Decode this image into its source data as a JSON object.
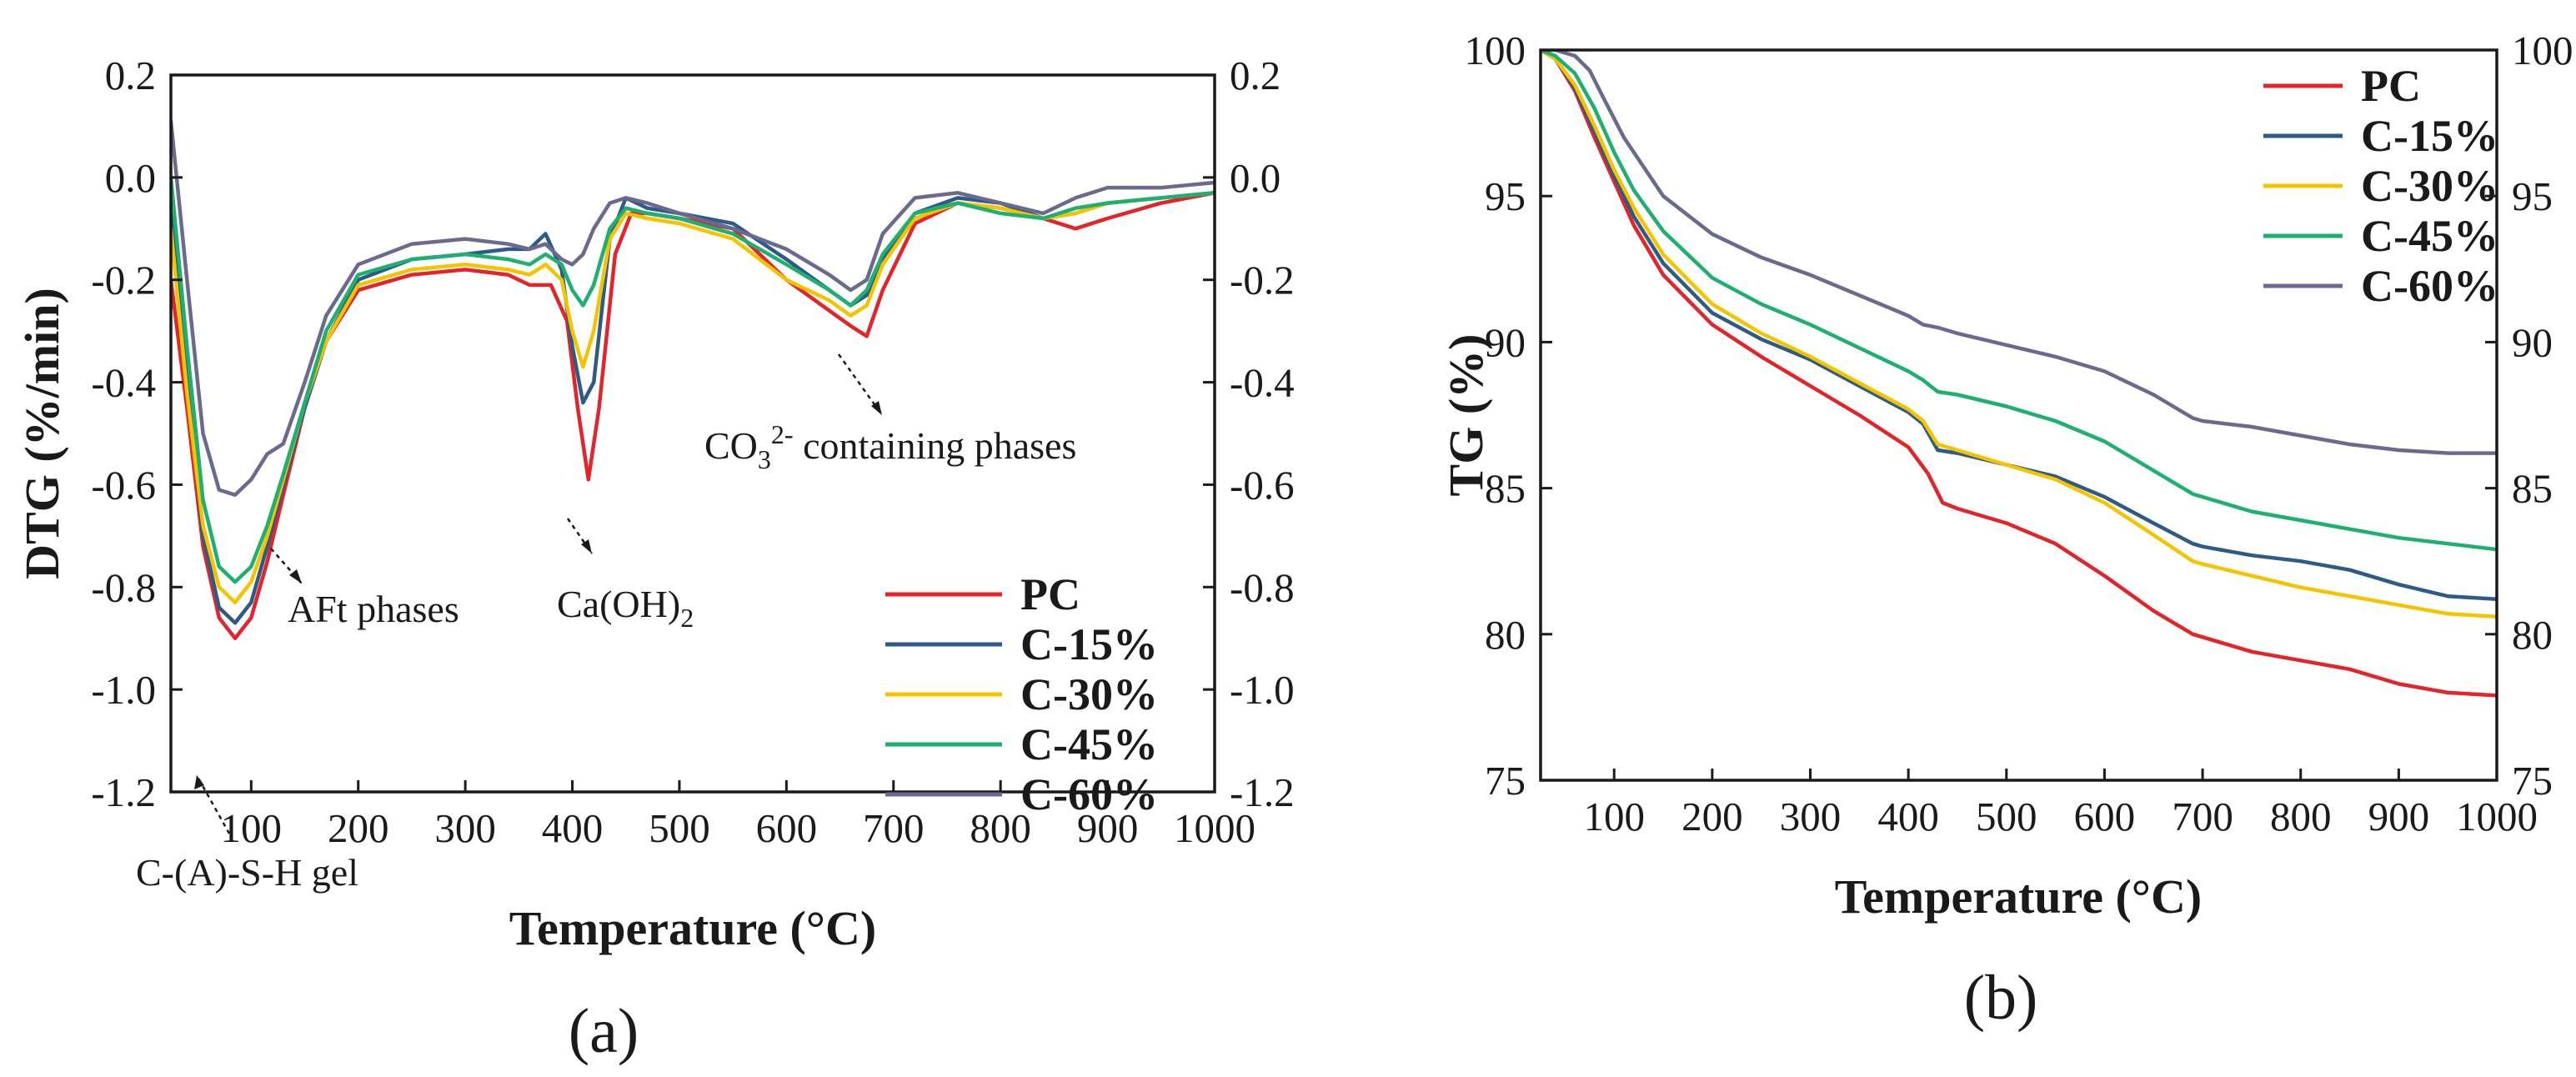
{
  "chart_data": [
    {
      "panel": "(a)",
      "type": "line",
      "ylabel": "DTG (%/min)",
      "xlabel": "Temperature (°C)",
      "xlim": [
        25,
        1000
      ],
      "ylim": [
        -1.2,
        0.2
      ],
      "xticks": [
        100,
        200,
        300,
        400,
        500,
        600,
        700,
        800,
        900,
        1000
      ],
      "yticks": [
        -1.2,
        -1.0,
        -0.8,
        -0.6,
        -0.4,
        -0.2,
        0.0,
        0.2
      ],
      "ytick_labels": [
        "-1.2",
        "-1.0",
        "-0.8",
        "-0.6",
        "-0.4",
        "-0.2",
        "0.0",
        "0.2"
      ],
      "right_ytick_labels": [
        "-1.2",
        "-1.0",
        "-0.8",
        "-0.6",
        "-0.4",
        "-0.2",
        "0.0",
        "0.2"
      ],
      "legend_position": "bottom-right",
      "annotations": [
        {
          "text": "C-(A)-S-H gel",
          "x": 85,
          "y": -0.9
        },
        {
          "text": "AFt phases",
          "x": 135,
          "y": -0.58
        },
        {
          "text": "Ca(OH)2",
          "x": 430,
          "y": -0.58
        },
        {
          "text": "CO3 2- containing phases",
          "x": 670,
          "y": -0.31
        }
      ],
      "series": [
        {
          "name": "PC",
          "color": "#e3242b",
          "x": [
            25,
            40,
            55,
            70,
            85,
            100,
            115,
            130,
            150,
            170,
            200,
            250,
            300,
            340,
            360,
            380,
            395,
            405,
            415,
            425,
            440,
            455,
            470,
            500,
            550,
            600,
            640,
            660,
            675,
            690,
            720,
            760,
            800,
            840,
            870,
            900,
            950,
            1000
          ],
          "y": [
            -0.2,
            -0.45,
            -0.72,
            -0.86,
            -0.9,
            -0.86,
            -0.75,
            -0.62,
            -0.45,
            -0.32,
            -0.22,
            -0.19,
            -0.18,
            -0.19,
            -0.21,
            -0.21,
            -0.28,
            -0.45,
            -0.59,
            -0.45,
            -0.15,
            -0.07,
            -0.07,
            -0.08,
            -0.1,
            -0.2,
            -0.26,
            -0.29,
            -0.31,
            -0.22,
            -0.09,
            -0.05,
            -0.06,
            -0.08,
            -0.1,
            -0.08,
            -0.05,
            -0.03
          ]
        },
        {
          "name": "C-15%",
          "color": "#2d5b86",
          "x": [
            25,
            40,
            55,
            70,
            85,
            100,
            115,
            130,
            150,
            170,
            200,
            250,
            300,
            340,
            360,
            375,
            390,
            400,
            410,
            420,
            435,
            450,
            470,
            500,
            550,
            600,
            640,
            660,
            675,
            690,
            720,
            760,
            800,
            840,
            870,
            900,
            950,
            1000
          ],
          "y": [
            -0.05,
            -0.4,
            -0.7,
            -0.84,
            -0.87,
            -0.83,
            -0.72,
            -0.6,
            -0.45,
            -0.32,
            -0.2,
            -0.16,
            -0.15,
            -0.14,
            -0.14,
            -0.11,
            -0.18,
            -0.33,
            -0.44,
            -0.4,
            -0.12,
            -0.04,
            -0.06,
            -0.07,
            -0.09,
            -0.16,
            -0.22,
            -0.25,
            -0.23,
            -0.16,
            -0.07,
            -0.04,
            -0.05,
            -0.08,
            -0.07,
            -0.05,
            -0.04,
            -0.03
          ]
        },
        {
          "name": "C-30%",
          "color": "#f5c400",
          "x": [
            25,
            40,
            55,
            70,
            85,
            100,
            115,
            130,
            150,
            170,
            200,
            250,
            300,
            340,
            360,
            375,
            390,
            400,
            410,
            420,
            435,
            450,
            470,
            500,
            550,
            600,
            640,
            660,
            675,
            690,
            720,
            760,
            800,
            840,
            870,
            900,
            950,
            1000
          ],
          "y": [
            -0.1,
            -0.42,
            -0.68,
            -0.8,
            -0.83,
            -0.79,
            -0.7,
            -0.59,
            -0.44,
            -0.32,
            -0.21,
            -0.18,
            -0.17,
            -0.18,
            -0.19,
            -0.17,
            -0.2,
            -0.3,
            -0.37,
            -0.3,
            -0.12,
            -0.07,
            -0.08,
            -0.09,
            -0.12,
            -0.2,
            -0.24,
            -0.27,
            -0.25,
            -0.17,
            -0.08,
            -0.05,
            -0.06,
            -0.08,
            -0.07,
            -0.05,
            -0.04,
            -0.03
          ]
        },
        {
          "name": "C-45%",
          "color": "#1db071",
          "x": [
            25,
            40,
            55,
            70,
            85,
            100,
            115,
            130,
            150,
            170,
            200,
            250,
            300,
            340,
            360,
            375,
            390,
            400,
            410,
            420,
            435,
            450,
            470,
            500,
            550,
            600,
            640,
            660,
            675,
            690,
            720,
            760,
            800,
            840,
            870,
            900,
            950,
            1000
          ],
          "y": [
            0.0,
            -0.33,
            -0.63,
            -0.76,
            -0.79,
            -0.76,
            -0.68,
            -0.58,
            -0.44,
            -0.3,
            -0.19,
            -0.16,
            -0.15,
            -0.16,
            -0.17,
            -0.15,
            -0.17,
            -0.22,
            -0.25,
            -0.21,
            -0.1,
            -0.06,
            -0.07,
            -0.08,
            -0.11,
            -0.17,
            -0.22,
            -0.25,
            -0.22,
            -0.15,
            -0.07,
            -0.05,
            -0.07,
            -0.08,
            -0.06,
            -0.05,
            -0.04,
            -0.03
          ]
        },
        {
          "name": "C-60%",
          "color": "#6a6a8e",
          "x": [
            25,
            40,
            55,
            70,
            85,
            100,
            115,
            130,
            150,
            170,
            200,
            250,
            300,
            340,
            360,
            375,
            390,
            400,
            410,
            420,
            435,
            450,
            470,
            500,
            550,
            600,
            640,
            660,
            675,
            690,
            720,
            760,
            800,
            840,
            870,
            900,
            950,
            1000
          ],
          "y": [
            0.11,
            -0.2,
            -0.5,
            -0.61,
            -0.62,
            -0.59,
            -0.54,
            -0.52,
            -0.4,
            -0.27,
            -0.17,
            -0.13,
            -0.12,
            -0.13,
            -0.14,
            -0.13,
            -0.16,
            -0.17,
            -0.15,
            -0.1,
            -0.05,
            -0.04,
            -0.05,
            -0.07,
            -0.1,
            -0.14,
            -0.19,
            -0.22,
            -0.2,
            -0.11,
            -0.04,
            -0.03,
            -0.05,
            -0.07,
            -0.04,
            -0.02,
            -0.02,
            -0.01
          ]
        }
      ]
    },
    {
      "panel": "(b)",
      "type": "line",
      "ylabel": "TG (%)",
      "xlabel": "Temperature (°C)",
      "xlim": [
        25,
        1000
      ],
      "ylim": [
        75,
        100
      ],
      "xticks": [
        100,
        200,
        300,
        400,
        500,
        600,
        700,
        800,
        900,
        1000
      ],
      "yticks": [
        75,
        80,
        85,
        90,
        95,
        100
      ],
      "ytick_labels": [
        "75",
        "80",
        "85",
        "90",
        "95",
        "100"
      ],
      "right_ytick_labels": [
        "75",
        "80",
        "85",
        "90",
        "95",
        "100"
      ],
      "legend_position": "top-right",
      "series": [
        {
          "name": "PC",
          "color": "#e3242b",
          "x": [
            25,
            40,
            60,
            80,
            100,
            120,
            150,
            200,
            250,
            300,
            350,
            400,
            420,
            435,
            450,
            500,
            550,
            600,
            650,
            690,
            700,
            750,
            800,
            850,
            900,
            950,
            1000
          ],
          "y": [
            100,
            99.7,
            98.6,
            97.0,
            95.5,
            94.0,
            92.3,
            90.6,
            89.5,
            88.5,
            87.5,
            86.4,
            85.5,
            84.5,
            84.3,
            83.8,
            83.1,
            82.0,
            80.8,
            80.0,
            79.9,
            79.4,
            79.1,
            78.8,
            78.3,
            78.0,
            77.9
          ]
        },
        {
          "name": "C-15%",
          "color": "#2d5b86",
          "x": [
            25,
            40,
            60,
            80,
            100,
            120,
            150,
            200,
            250,
            300,
            350,
            400,
            415,
            430,
            450,
            500,
            550,
            600,
            650,
            690,
            700,
            750,
            800,
            850,
            900,
            950,
            1000
          ],
          "y": [
            100,
            99.7,
            98.7,
            97.2,
            95.7,
            94.3,
            92.7,
            91.0,
            90.1,
            89.4,
            88.5,
            87.6,
            87.2,
            86.3,
            86.2,
            85.8,
            85.4,
            84.7,
            83.8,
            83.1,
            83.0,
            82.7,
            82.5,
            82.2,
            81.7,
            81.3,
            81.2
          ]
        },
        {
          "name": "C-30%",
          "color": "#f5c400",
          "x": [
            25,
            40,
            60,
            80,
            100,
            120,
            150,
            200,
            250,
            300,
            350,
            400,
            415,
            430,
            450,
            500,
            550,
            600,
            650,
            690,
            700,
            750,
            800,
            850,
            900,
            950,
            1000
          ],
          "y": [
            100,
            99.7,
            98.8,
            97.4,
            95.9,
            94.6,
            93.0,
            91.3,
            90.3,
            89.5,
            88.6,
            87.7,
            87.3,
            86.5,
            86.3,
            85.8,
            85.3,
            84.5,
            83.4,
            82.5,
            82.4,
            82.0,
            81.6,
            81.3,
            81.0,
            80.7,
            80.6
          ]
        },
        {
          "name": "C-45%",
          "color": "#1db071",
          "x": [
            25,
            40,
            60,
            80,
            100,
            120,
            150,
            200,
            250,
            300,
            350,
            400,
            415,
            430,
            450,
            500,
            550,
            600,
            650,
            690,
            700,
            750,
            800,
            850,
            900,
            950,
            1000
          ],
          "y": [
            100,
            99.8,
            99.2,
            98.0,
            96.5,
            95.2,
            93.8,
            92.2,
            91.3,
            90.6,
            89.8,
            89.0,
            88.7,
            88.3,
            88.2,
            87.8,
            87.3,
            86.6,
            85.6,
            84.8,
            84.7,
            84.2,
            83.9,
            83.6,
            83.3,
            83.1,
            82.9
          ]
        },
        {
          "name": "C-60%",
          "color": "#6a6a8e",
          "x": [
            25,
            40,
            60,
            75,
            90,
            110,
            150,
            200,
            250,
            300,
            350,
            400,
            415,
            430,
            450,
            500,
            550,
            600,
            650,
            690,
            700,
            750,
            800,
            850,
            900,
            950,
            1000
          ],
          "y": [
            100,
            100,
            99.8,
            99.3,
            98.3,
            97.0,
            95.0,
            93.7,
            92.9,
            92.3,
            91.6,
            90.9,
            90.6,
            90.5,
            90.3,
            89.9,
            89.5,
            89.0,
            88.2,
            87.4,
            87.3,
            87.1,
            86.8,
            86.5,
            86.3,
            86.2,
            86.2
          ]
        }
      ]
    }
  ]
}
